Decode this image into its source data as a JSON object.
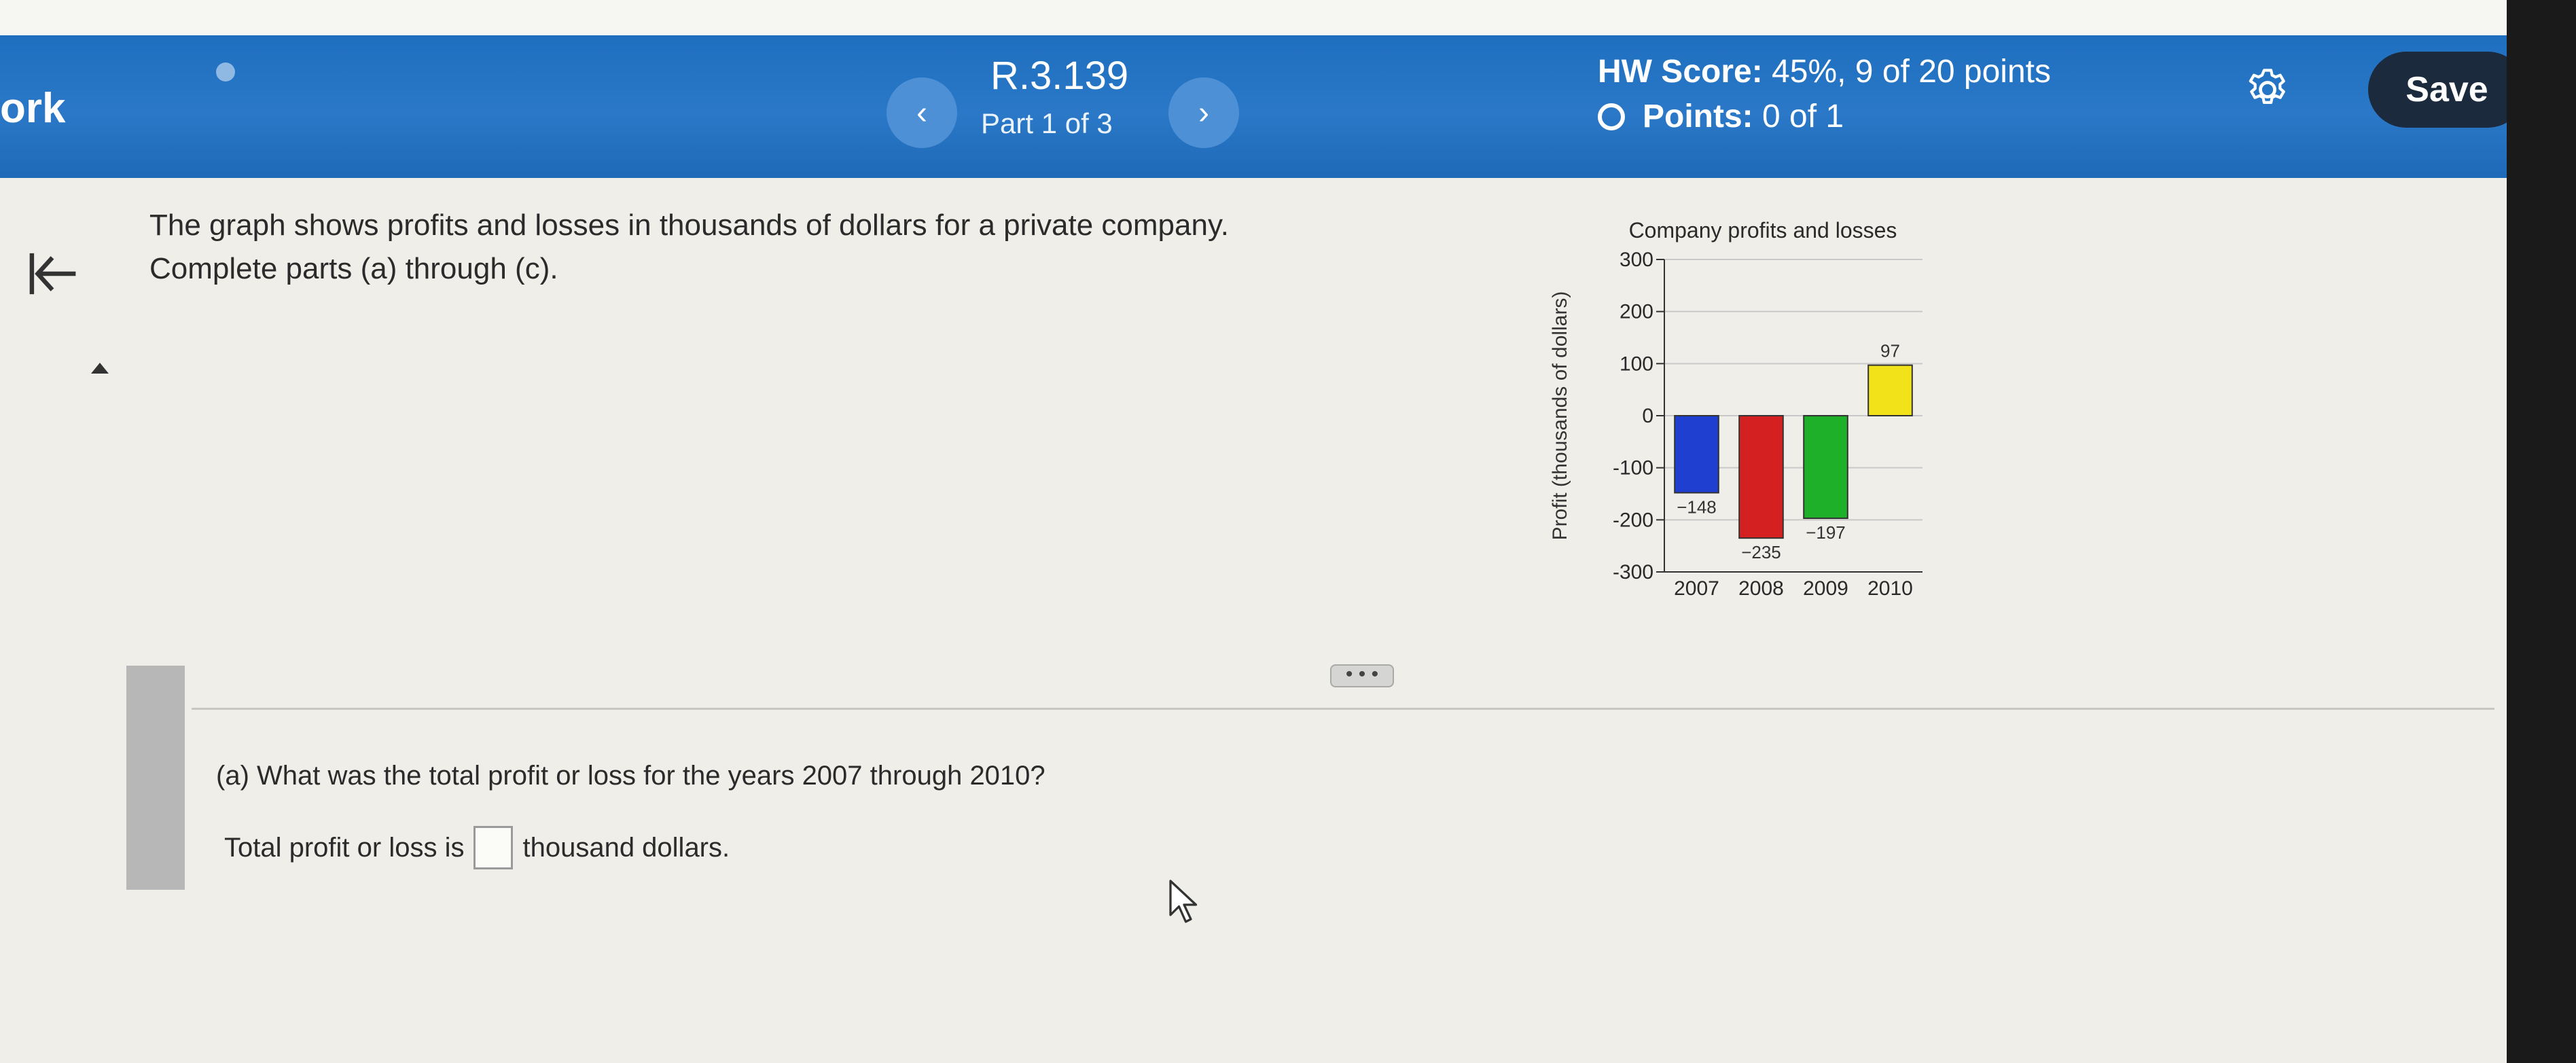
{
  "header": {
    "brand": "ork",
    "prev_label": "‹",
    "next_label": "›",
    "question_id": "R.3.139",
    "part": "Part 1 of 3",
    "hw_score_label": "HW Score:",
    "hw_score_value": "45%, 9 of 20 points",
    "points_label": "Points:",
    "points_value": "0 of 1",
    "save_label": "Save",
    "icons": {
      "settings": "gear-icon",
      "points": "radio-circle-icon"
    }
  },
  "sidebar": {
    "collapse_icon": "collapse-left-icon",
    "scroll_up_icon": "triangle-up-icon"
  },
  "question": {
    "intro_line1": "The graph shows profits and losses in thousands of dollars for a private company.",
    "intro_line2_pre": "Complete parts ",
    "intro_part_a": "(a)",
    "intro_through": " through ",
    "intro_part_c": "(c)",
    "intro_end": ".",
    "more_label": "• • •",
    "part_a_label": "(a)",
    "part_a_text": " What was the total profit or loss for the years 2007 through 2010?",
    "answer_prefix": "Total profit or loss is",
    "answer_value": "",
    "answer_suffix": "thousand dollars."
  },
  "chart_data": {
    "type": "bar",
    "title": "Company profits and losses",
    "ylabel": "Profit (thousands of dollars)",
    "xlabel": "",
    "categories": [
      "2007",
      "2008",
      "2009",
      "2010"
    ],
    "values": [
      -148,
      -235,
      -197,
      97
    ],
    "value_labels": [
      "−148",
      "−235",
      "−197",
      "97"
    ],
    "colors": [
      "#1f3fd0",
      "#d42020",
      "#1fb02a",
      "#f2e21a"
    ],
    "ylim": [
      -300,
      300
    ],
    "yticks": [
      300,
      200,
      100,
      0,
      -100,
      -200,
      -300
    ],
    "ytick_labels": [
      "300",
      "200",
      "100",
      "0",
      "-100",
      "-200",
      "-300"
    ],
    "grid": true
  }
}
